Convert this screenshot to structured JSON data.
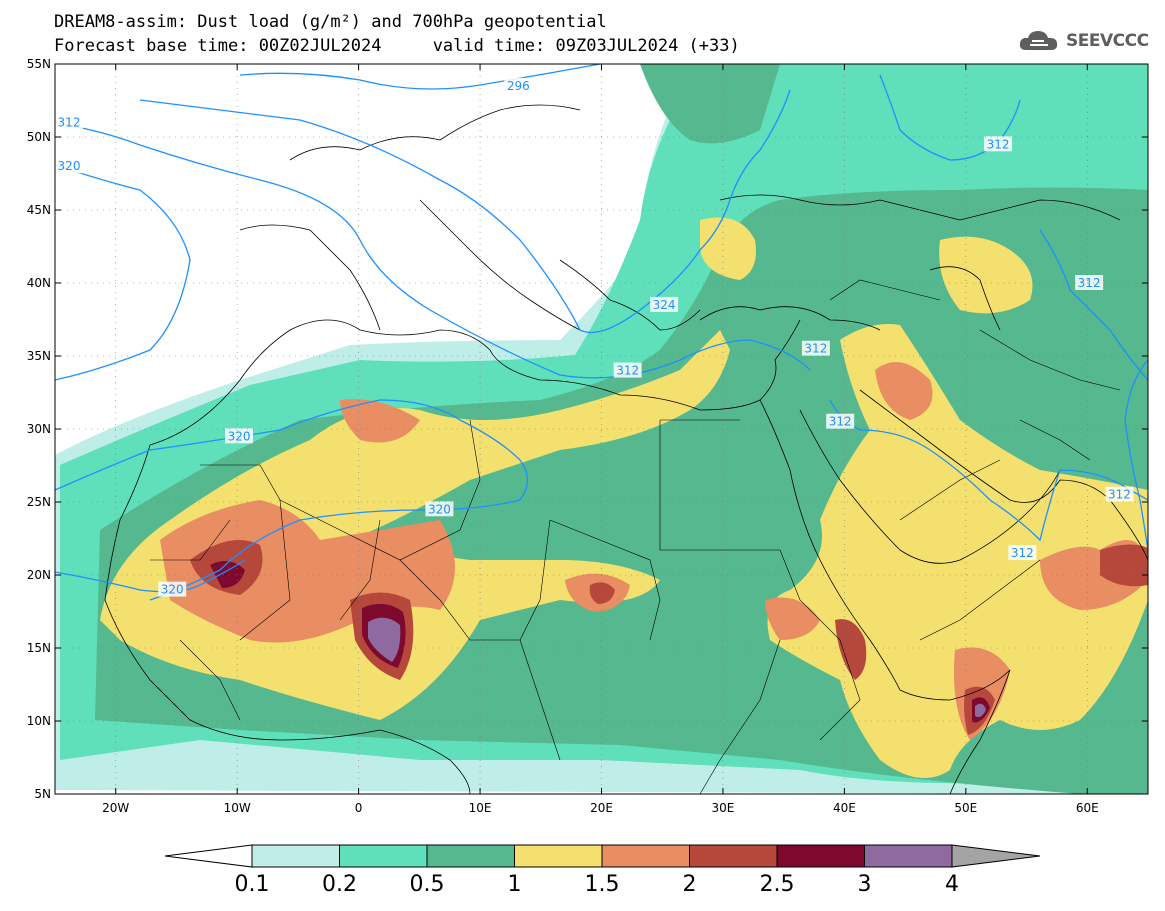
{
  "title": {
    "line1": "DREAM8-assim: Dust load (g/m²) and 700hPa geopotential",
    "line2": "Forecast base time: 00Z02JUL2024     valid time: 09Z03JUL2024 (+33)"
  },
  "logo": {
    "icon": "cloud-icon",
    "text": "SEEVCCC"
  },
  "map": {
    "lat_labels": [
      "55N",
      "50N",
      "45N",
      "40N",
      "35N",
      "30N",
      "25N",
      "20N",
      "15N",
      "10N",
      "5N"
    ],
    "lon_labels": [
      "20W",
      "10W",
      "0",
      "10E",
      "20E",
      "30E",
      "40E",
      "50E",
      "60E"
    ],
    "extent": {
      "lon_min": -25,
      "lon_max": 65,
      "lat_min": 5,
      "lat_max": 55
    },
    "contour_labels": [
      {
        "text": "296",
        "lon": 12,
        "lat": 53.5
      },
      {
        "text": "312",
        "lon": -25,
        "lat": 51
      },
      {
        "text": "320",
        "lon": -25,
        "lat": 48
      },
      {
        "text": "312",
        "lon": 51.5,
        "lat": 49.5
      },
      {
        "text": "312",
        "lon": 59,
        "lat": 40
      },
      {
        "text": "324",
        "lon": 24,
        "lat": 38.5
      },
      {
        "text": "312",
        "lon": 21,
        "lat": 34
      },
      {
        "text": "312",
        "lon": 36.5,
        "lat": 35.5
      },
      {
        "text": "312",
        "lon": 38.5,
        "lat": 30.5
      },
      {
        "text": "320",
        "lon": -11,
        "lat": 29.5
      },
      {
        "text": "320",
        "lon": 5.5,
        "lat": 24.5
      },
      {
        "text": "312",
        "lon": 61.5,
        "lat": 25.5
      },
      {
        "text": "312",
        "lon": 53.5,
        "lat": 21.5
      },
      {
        "text": "320",
        "lon": -16.5,
        "lat": 19
      }
    ]
  },
  "colorbar": {
    "labels": [
      "0.1",
      "0.2",
      "0.5",
      "1",
      "1.5",
      "2",
      "2.5",
      "3",
      "4"
    ],
    "colors": [
      "#ffffff",
      "#bfeee8",
      "#5fdfba",
      "#55b88e",
      "#f3e06e",
      "#e98d62",
      "#b5483b",
      "#7d0a2e",
      "#8e6aa0",
      "#a4a4a4"
    ]
  },
  "colors": {
    "contour": "#1e90ff",
    "coast": "#000000"
  }
}
